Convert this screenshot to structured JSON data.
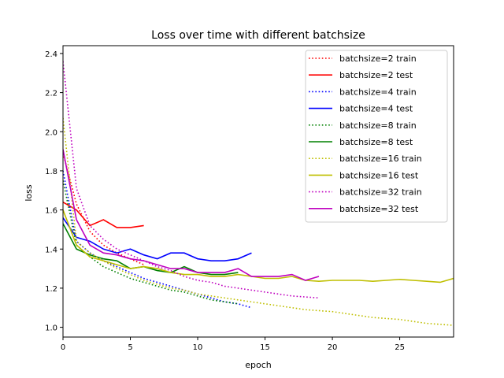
{
  "chart_data": {
    "type": "line",
    "title": "Loss over time with different batchsize",
    "xlabel": "epoch",
    "ylabel": "loss",
    "xlim": [
      0,
      29
    ],
    "ylim": [
      0.95,
      2.44
    ],
    "xticks": [
      0,
      5,
      10,
      15,
      20,
      25
    ],
    "yticks": [
      1.0,
      1.2,
      1.4,
      1.6,
      1.8,
      2.0,
      2.2,
      2.4
    ],
    "legend_position": "top-right",
    "grid": false,
    "series": [
      {
        "name": "batchsize=2 train",
        "color": "#ff0000",
        "style": "dotted",
        "x": [
          0,
          1,
          2,
          3,
          4,
          5,
          6
        ],
        "y": [
          1.89,
          1.63,
          1.49,
          1.42,
          1.38,
          1.35,
          1.32
        ]
      },
      {
        "name": "batchsize=2 test",
        "color": "#ff0000",
        "style": "solid",
        "x": [
          0,
          1,
          2,
          3,
          4,
          5,
          6
        ],
        "y": [
          1.64,
          1.6,
          1.52,
          1.55,
          1.51,
          1.51,
          1.52
        ]
      },
      {
        "name": "batchsize=4 train",
        "color": "#0000ff",
        "style": "dotted",
        "x": [
          0,
          1,
          2,
          3,
          4,
          5,
          6,
          7,
          8,
          9,
          10,
          11,
          12,
          13,
          14
        ],
        "y": [
          1.8,
          1.44,
          1.38,
          1.34,
          1.31,
          1.28,
          1.25,
          1.23,
          1.21,
          1.19,
          1.17,
          1.15,
          1.13,
          1.12,
          1.1
        ]
      },
      {
        "name": "batchsize=4 test",
        "color": "#0000ff",
        "style": "solid",
        "x": [
          0,
          1,
          2,
          3,
          4,
          5,
          6,
          7,
          8,
          9,
          10,
          11,
          12,
          13,
          14
        ],
        "y": [
          1.56,
          1.46,
          1.44,
          1.4,
          1.38,
          1.4,
          1.37,
          1.35,
          1.38,
          1.38,
          1.35,
          1.34,
          1.34,
          1.35,
          1.38
        ]
      },
      {
        "name": "batchsize=8 train",
        "color": "#008000",
        "style": "dotted",
        "x": [
          0,
          1,
          2,
          3,
          4,
          5,
          6,
          7,
          8,
          9,
          10,
          11,
          12,
          13
        ],
        "y": [
          1.75,
          1.42,
          1.36,
          1.31,
          1.28,
          1.25,
          1.23,
          1.21,
          1.19,
          1.18,
          1.16,
          1.14,
          1.13,
          1.12
        ]
      },
      {
        "name": "batchsize=8 test",
        "color": "#008000",
        "style": "solid",
        "x": [
          0,
          1,
          2,
          3,
          4,
          5,
          6,
          7,
          8,
          9,
          10,
          11,
          12,
          13
        ],
        "y": [
          1.53,
          1.4,
          1.37,
          1.35,
          1.34,
          1.3,
          1.31,
          1.29,
          1.28,
          1.31,
          1.28,
          1.27,
          1.27,
          1.28
        ]
      },
      {
        "name": "batchsize=16 train",
        "color": "#bfbf00",
        "style": "dotted",
        "x": [
          0,
          1,
          2,
          3,
          4,
          5,
          6,
          7,
          8,
          9,
          10,
          11,
          12,
          13,
          14,
          15,
          16,
          17,
          18,
          19,
          20,
          21,
          22,
          23,
          24,
          25,
          26,
          27,
          28,
          29
        ],
        "y": [
          2.07,
          1.44,
          1.38,
          1.34,
          1.3,
          1.27,
          1.24,
          1.22,
          1.2,
          1.19,
          1.17,
          1.16,
          1.15,
          1.14,
          1.13,
          1.12,
          1.11,
          1.1,
          1.09,
          1.085,
          1.08,
          1.07,
          1.06,
          1.05,
          1.045,
          1.04,
          1.03,
          1.02,
          1.015,
          1.01
        ]
      },
      {
        "name": "batchsize=16 test",
        "color": "#bfbf00",
        "style": "solid",
        "x": [
          0,
          1,
          2,
          3,
          4,
          5,
          6,
          7,
          8,
          9,
          10,
          11,
          12,
          13,
          14,
          15,
          16,
          17,
          18,
          19,
          20,
          21,
          22,
          23,
          24,
          25,
          26,
          27,
          28,
          29
        ],
        "y": [
          1.6,
          1.42,
          1.36,
          1.34,
          1.32,
          1.3,
          1.31,
          1.3,
          1.28,
          1.27,
          1.27,
          1.26,
          1.26,
          1.27,
          1.26,
          1.25,
          1.25,
          1.26,
          1.24,
          1.235,
          1.24,
          1.24,
          1.24,
          1.235,
          1.24,
          1.245,
          1.24,
          1.235,
          1.23,
          1.25
        ]
      },
      {
        "name": "batchsize=32 train",
        "color": "#bf00bf",
        "style": "dotted",
        "x": [
          0,
          1,
          2,
          3,
          4,
          5,
          6,
          7,
          8,
          9,
          10,
          11,
          12,
          13,
          14,
          15,
          16,
          17,
          18,
          19
        ],
        "y": [
          2.36,
          1.71,
          1.52,
          1.45,
          1.4,
          1.37,
          1.34,
          1.31,
          1.29,
          1.26,
          1.24,
          1.23,
          1.21,
          1.2,
          1.19,
          1.18,
          1.17,
          1.16,
          1.155,
          1.15
        ]
      },
      {
        "name": "batchsize=32 test",
        "color": "#bf00bf",
        "style": "solid",
        "x": [
          0,
          1,
          2,
          3,
          4,
          5,
          6,
          7,
          8,
          9,
          10,
          11,
          12,
          13,
          14,
          15,
          16,
          17,
          18,
          19
        ],
        "y": [
          1.91,
          1.55,
          1.42,
          1.38,
          1.37,
          1.35,
          1.34,
          1.32,
          1.3,
          1.3,
          1.28,
          1.28,
          1.28,
          1.3,
          1.26,
          1.26,
          1.26,
          1.27,
          1.24,
          1.26
        ]
      }
    ]
  }
}
